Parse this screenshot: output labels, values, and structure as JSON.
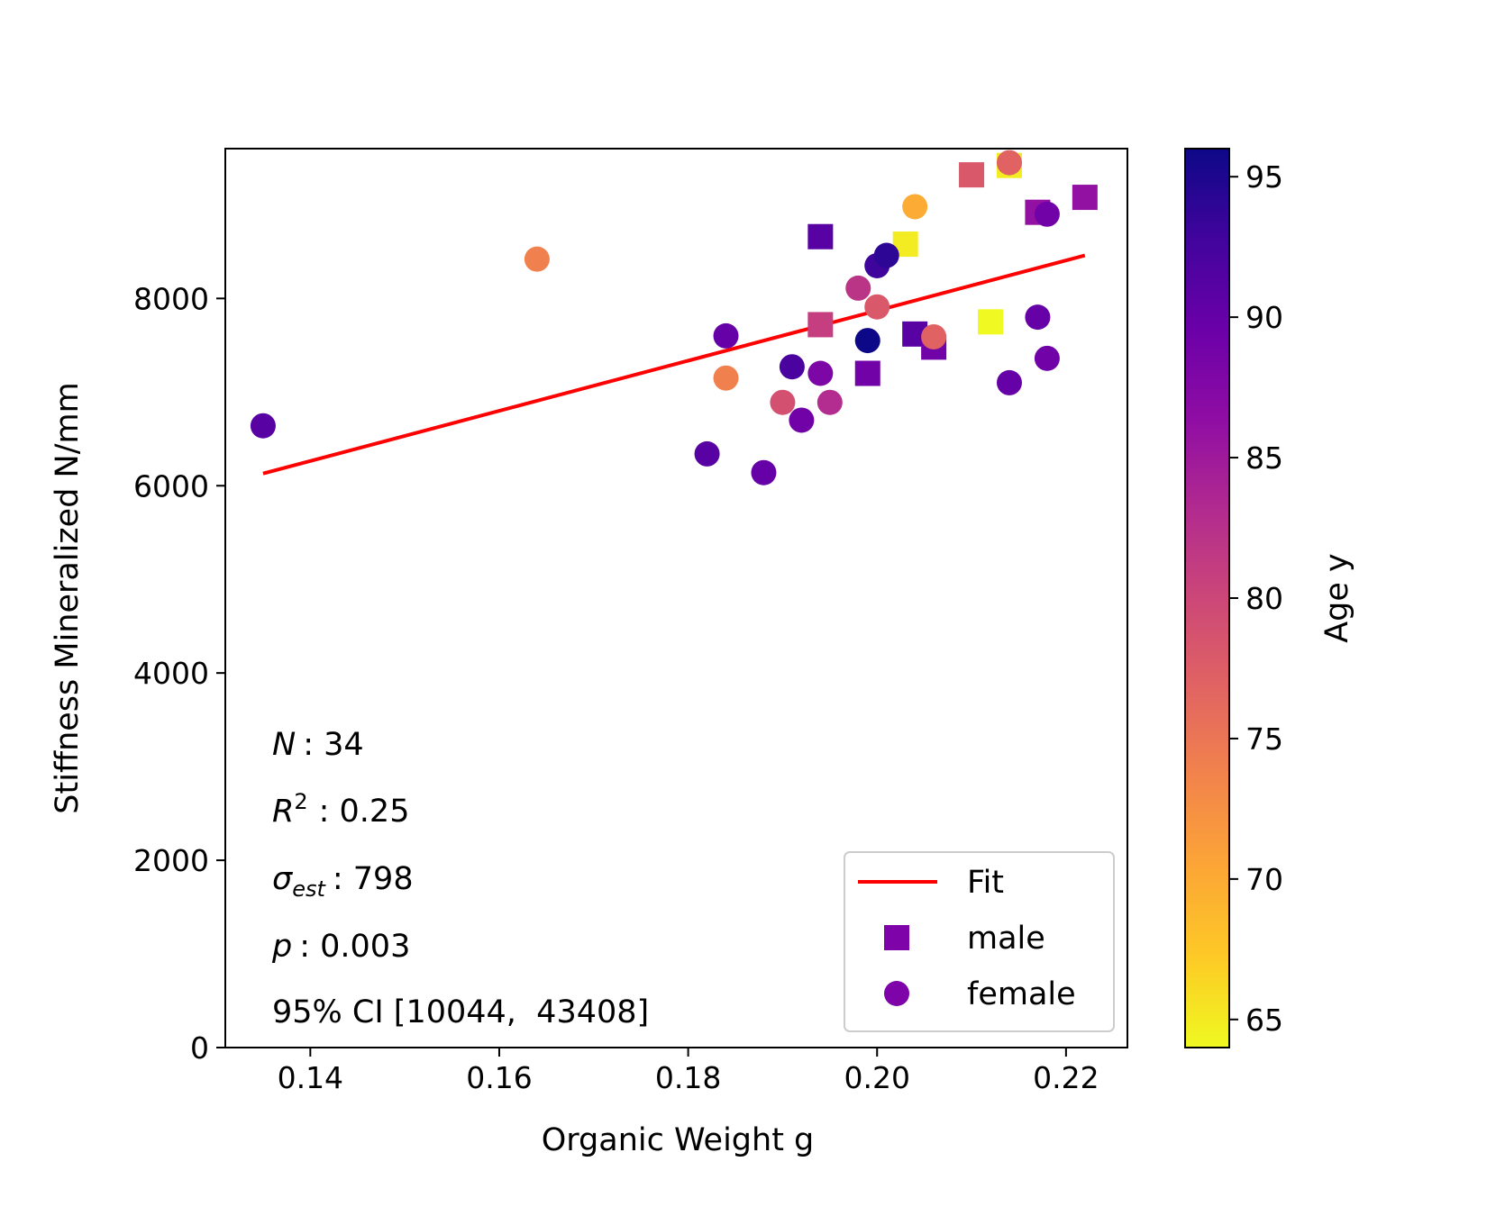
{
  "chart_data": {
    "type": "scatter",
    "xlabel": "Organic Weight g",
    "ylabel": "Stiffness Mineralized N/mm",
    "xlim": [
      0.131,
      0.2265
    ],
    "ylim": [
      0,
      9600
    ],
    "x_ticks": [
      0.14,
      0.16,
      0.18,
      0.2,
      0.22
    ],
    "x_tick_labels": [
      "0.14",
      "0.16",
      "0.18",
      "0.20",
      "0.22"
    ],
    "y_ticks": [
      0,
      2000,
      4000,
      6000,
      8000
    ],
    "y_tick_labels": [
      "0",
      "2000",
      "4000",
      "6000",
      "8000"
    ],
    "grid": false,
    "colorbar": {
      "label": "Age y",
      "colormap": "plasma",
      "range": [
        64,
        96
      ],
      "ticks": [
        65,
        70,
        75,
        80,
        85,
        90,
        95
      ],
      "tick_labels": [
        "65",
        "70",
        "75",
        "80",
        "85",
        "90",
        "95"
      ]
    },
    "fit_line": {
      "name": "Fit",
      "color": "#ff0000",
      "x": [
        0.135,
        0.222
      ],
      "y": [
        6130,
        8460
      ]
    },
    "legend": {
      "placement": "lower-right",
      "entries": [
        {
          "label": "Fit",
          "marker": "line",
          "color": "#ff0000"
        },
        {
          "label": "male",
          "marker": "square",
          "color": "#7e03a8"
        },
        {
          "label": "female",
          "marker": "circle",
          "color": "#7e03a8"
        }
      ]
    },
    "stats": {
      "n_label": "N",
      "n_value": ": 34",
      "r2_label": "R",
      "r2_sup": "2",
      "r2_value": ": 0.25",
      "sigma_label": "σ",
      "sigma_sub": "est",
      "sigma_value": ": 798",
      "p_label": "p",
      "p_value": ": 0.003",
      "ci": "95% CI [10044,  43408]"
    },
    "series": [
      {
        "name": "male",
        "marker": "square",
        "points": [
          {
            "x": 0.194,
            "y": 8660,
            "age": 91
          },
          {
            "x": 0.194,
            "y": 7720,
            "age": 81
          },
          {
            "x": 0.199,
            "y": 7200,
            "age": 89
          },
          {
            "x": 0.203,
            "y": 8580,
            "age": 65
          },
          {
            "x": 0.204,
            "y": 7620,
            "age": 91
          },
          {
            "x": 0.206,
            "y": 7480,
            "age": 89
          },
          {
            "x": 0.21,
            "y": 9320,
            "age": 78
          },
          {
            "x": 0.212,
            "y": 7750,
            "age": 64
          },
          {
            "x": 0.214,
            "y": 9420,
            "age": 65
          },
          {
            "x": 0.217,
            "y": 8920,
            "age": 86
          },
          {
            "x": 0.222,
            "y": 9080,
            "age": 86
          }
        ]
      },
      {
        "name": "female",
        "marker": "circle",
        "points": [
          {
            "x": 0.135,
            "y": 6640,
            "age": 91
          },
          {
            "x": 0.164,
            "y": 8420,
            "age": 74
          },
          {
            "x": 0.182,
            "y": 6340,
            "age": 91
          },
          {
            "x": 0.184,
            "y": 7600,
            "age": 90
          },
          {
            "x": 0.184,
            "y": 7150,
            "age": 74
          },
          {
            "x": 0.188,
            "y": 6140,
            "age": 90
          },
          {
            "x": 0.19,
            "y": 6890,
            "age": 79
          },
          {
            "x": 0.191,
            "y": 7270,
            "age": 92
          },
          {
            "x": 0.192,
            "y": 6700,
            "age": 89
          },
          {
            "x": 0.194,
            "y": 7200,
            "age": 88
          },
          {
            "x": 0.195,
            "y": 6890,
            "age": 83
          },
          {
            "x": 0.198,
            "y": 8110,
            "age": 82
          },
          {
            "x": 0.199,
            "y": 7550,
            "age": 96
          },
          {
            "x": 0.2,
            "y": 7910,
            "age": 78
          },
          {
            "x": 0.2,
            "y": 8350,
            "age": 93
          },
          {
            "x": 0.201,
            "y": 8460,
            "age": 94
          },
          {
            "x": 0.204,
            "y": 8980,
            "age": 70
          },
          {
            "x": 0.206,
            "y": 7590,
            "age": 77
          },
          {
            "x": 0.214,
            "y": 9450,
            "age": 77
          },
          {
            "x": 0.214,
            "y": 7100,
            "age": 90
          },
          {
            "x": 0.217,
            "y": 7800,
            "age": 90
          },
          {
            "x": 0.218,
            "y": 8900,
            "age": 89
          },
          {
            "x": 0.218,
            "y": 7360,
            "age": 89
          }
        ]
      }
    ]
  }
}
